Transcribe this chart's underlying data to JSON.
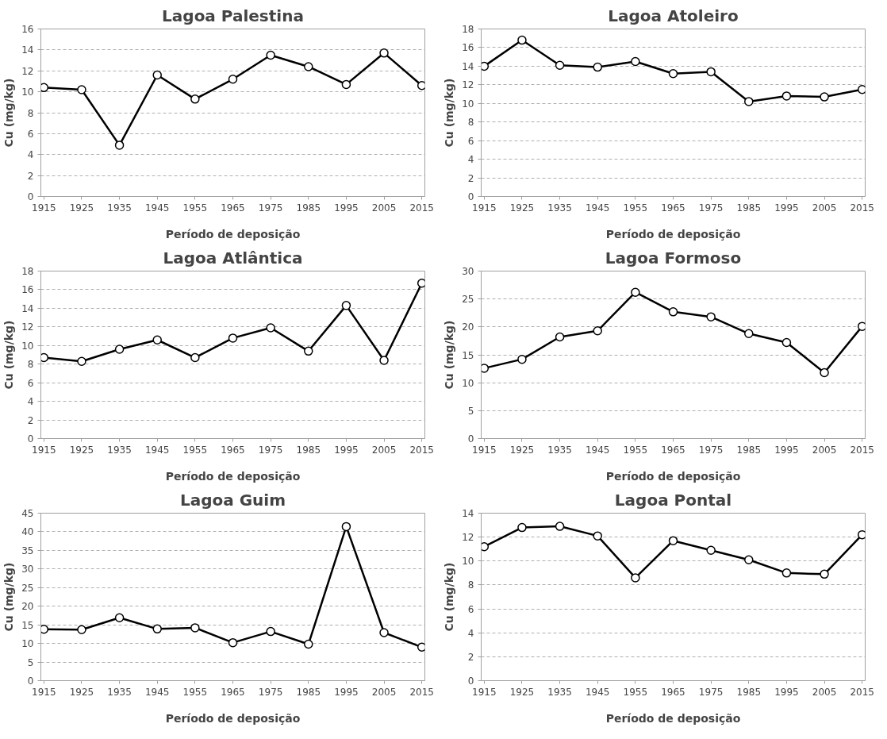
{
  "chart_data": [
    {
      "type": "line",
      "title": "Lagoa Palestina",
      "xlabel": "Período de deposição",
      "ylabel": "Cu (mg/kg)",
      "categories": [
        "1915",
        "1925",
        "1935",
        "1945",
        "1955",
        "1965",
        "1975",
        "1985",
        "1995",
        "2005",
        "2015"
      ],
      "series": [
        {
          "color": "#000000",
          "values": [
            10.4,
            10.2,
            4.9,
            11.6,
            9.3,
            11.2,
            13.5,
            12.4,
            10.7,
            13.7,
            10.6
          ]
        }
      ],
      "ylim": [
        0,
        16
      ],
      "yticks": [
        0,
        2,
        4,
        6,
        8,
        10,
        12,
        14,
        16
      ],
      "grid": "y",
      "marker": "circle",
      "line_style": "solid"
    },
    {
      "type": "line",
      "title": "Lagoa Atoleiro",
      "xlabel": "Período de deposição",
      "ylabel": "Cu (mg/kg)",
      "categories": [
        "1915",
        "1925",
        "1935",
        "1945",
        "1955",
        "1965",
        "1975",
        "1985",
        "1995",
        "2005",
        "2015"
      ],
      "series": [
        {
          "color": "#000000",
          "values": [
            14.0,
            16.8,
            14.1,
            13.9,
            14.5,
            13.2,
            13.4,
            10.2,
            10.8,
            10.7,
            11.5
          ]
        }
      ],
      "ylim": [
        0,
        18
      ],
      "yticks": [
        0,
        2,
        4,
        6,
        8,
        10,
        12,
        14,
        16,
        18
      ],
      "grid": "y",
      "marker": "circle",
      "line_style": "solid"
    },
    {
      "type": "line",
      "title": "Lagoa Atlântica",
      "xlabel": "Período de deposição",
      "ylabel": "Cu (mg/kg)",
      "categories": [
        "1915",
        "1925",
        "1935",
        "1945",
        "1955",
        "1965",
        "1975",
        "1985",
        "1995",
        "2005",
        "2015"
      ],
      "series": [
        {
          "color": "#000000",
          "values": [
            8.7,
            8.3,
            9.6,
            10.6,
            8.7,
            10.8,
            11.9,
            9.4,
            14.3,
            8.4,
            16.7
          ]
        }
      ],
      "ylim": [
        0,
        18
      ],
      "yticks": [
        0,
        2,
        4,
        6,
        8,
        10,
        12,
        14,
        16,
        18
      ],
      "grid": "y",
      "marker": "circle",
      "line_style": "solid"
    },
    {
      "type": "line",
      "title": "Lagoa Formoso",
      "xlabel": "Período de deposição",
      "ylabel": "Cu (mg/kg)",
      "categories": [
        "1915",
        "1925",
        "1935",
        "1945",
        "1955",
        "1965",
        "1975",
        "1985",
        "1995",
        "2005",
        "2015"
      ],
      "series": [
        {
          "color": "#000000",
          "values": [
            12.6,
            14.2,
            18.2,
            19.3,
            26.2,
            22.7,
            21.8,
            18.8,
            17.2,
            11.8,
            20.1
          ]
        }
      ],
      "ylim": [
        0,
        30
      ],
      "yticks": [
        0,
        5,
        10,
        15,
        20,
        25,
        30
      ],
      "grid": "y",
      "marker": "circle",
      "line_style": "solid"
    },
    {
      "type": "line",
      "title": "Lagoa Guim",
      "xlabel": "Período de deposição",
      "ylabel": "Cu (mg/kg)",
      "categories": [
        "1915",
        "1925",
        "1935",
        "1945",
        "1955",
        "1965",
        "1975",
        "1985",
        "1995",
        "2005",
        "2015"
      ],
      "series": [
        {
          "color": "#000000",
          "values": [
            13.8,
            13.7,
            16.9,
            13.9,
            14.2,
            10.2,
            13.2,
            9.8,
            41.4,
            12.9,
            9.0
          ]
        }
      ],
      "ylim": [
        0,
        45
      ],
      "yticks": [
        0,
        5,
        10,
        15,
        20,
        25,
        30,
        35,
        40,
        45
      ],
      "grid": "y",
      "marker": "circle",
      "line_style": "solid"
    },
    {
      "type": "line",
      "title": "Lagoa Pontal",
      "xlabel": "Período de deposição",
      "ylabel": "Cu (mg/kg)",
      "categories": [
        "1915",
        "1925",
        "1935",
        "1945",
        "1955",
        "1965",
        "1975",
        "1985",
        "1995",
        "2005",
        "2015"
      ],
      "series": [
        {
          "color": "#000000",
          "values": [
            11.2,
            12.8,
            12.9,
            12.1,
            8.6,
            11.7,
            10.9,
            10.1,
            9.0,
            8.9,
            12.2
          ]
        }
      ],
      "ylim": [
        0,
        14
      ],
      "yticks": [
        0,
        2,
        4,
        6,
        8,
        10,
        12,
        14
      ],
      "grid": "y",
      "marker": "circle",
      "line_style": "solid"
    }
  ]
}
